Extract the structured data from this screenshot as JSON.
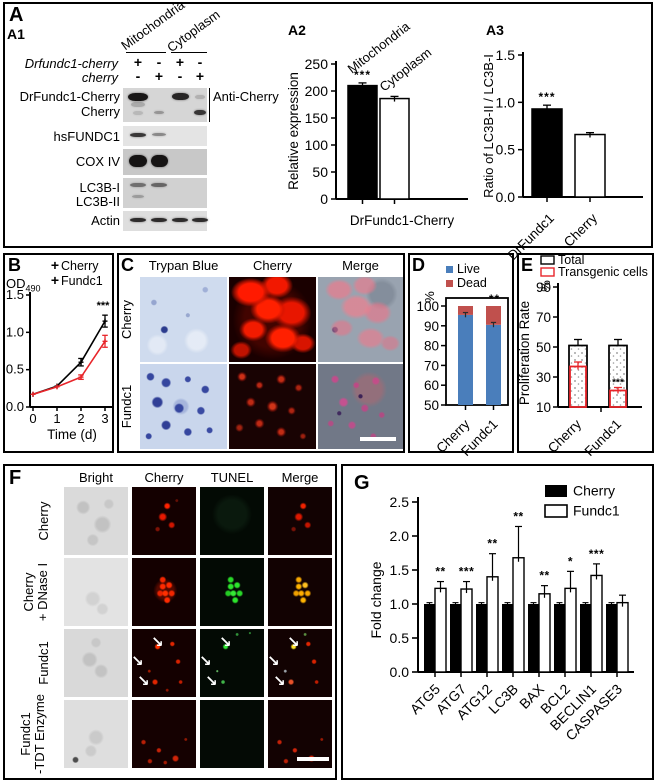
{
  "labels": {
    "A": "A",
    "A1": "A1",
    "A2": "A2",
    "A3": "A3",
    "B": "B",
    "C": "C",
    "D": "D",
    "E": "E",
    "F": "F",
    "G": "G"
  },
  "colors": {
    "red": "#e8252a",
    "live_blue": "#4a7ebb",
    "dead_red": "#c0504d",
    "black": "#000000",
    "white": "#ffffff"
  },
  "panels": {
    "a1": {
      "groups": [
        {
          "label": "Mitochondria"
        },
        {
          "label": "Cytoplasm"
        }
      ],
      "gene_rows": [
        {
          "label": "Drfundc1-cherry",
          "signs": [
            "+",
            "-",
            "+",
            "-"
          ]
        },
        {
          "label": "cherry",
          "signs": [
            "-",
            "+",
            "-",
            "+"
          ]
        }
      ],
      "antibody_label": "Anti-Cherry",
      "blots": [
        {
          "labels": [
            "DrFundc1-Cherry",
            "Cherry"
          ],
          "bands": [
            [
              0,
              5,
              1.15,
              0.95,
              8
            ],
            [
              2,
              5,
              1.0,
              0.88,
              7
            ],
            [
              3,
              7,
              0.55,
              0.18,
              4
            ],
            [
              0,
              14,
              0.8,
              0.22,
              5
            ],
            [
              1,
              23,
              0.6,
              0.32,
              3
            ],
            [
              3,
              22,
              0.75,
              0.8,
              5
            ],
            [
              0,
              23,
              0.6,
              0.15,
              4
            ]
          ]
        },
        {
          "labels": [
            "hsFUNDC1"
          ],
          "bands": [
            [
              0,
              7,
              0.95,
              0.8,
              4
            ],
            [
              1,
              7,
              0.8,
              0.42,
              3
            ]
          ]
        },
        {
          "labels": [
            "COX IV"
          ],
          "bands": [
            [
              0,
              6,
              1.1,
              0.97,
              12
            ],
            [
              1,
              6,
              1.0,
              0.97,
              12
            ]
          ]
        },
        {
          "labels": [
            "LC3B-I",
            "LC3B-II"
          ],
          "bands": [
            [
              0,
              5,
              0.9,
              0.5,
              4
            ],
            [
              1,
              5,
              0.95,
              0.55,
              4
            ],
            [
              0,
              17,
              0.75,
              0.28,
              3
            ]
          ]
        },
        {
          "labels": [
            "Actin"
          ],
          "bands": [
            [
              0,
              7,
              0.95,
              0.85,
              4
            ],
            [
              1,
              7,
              0.95,
              0.85,
              4
            ],
            [
              2,
              7,
              0.95,
              0.85,
              4
            ],
            [
              3,
              7,
              0.95,
              0.85,
              4
            ]
          ]
        }
      ]
    },
    "c": {
      "col_headers": [
        "Trypan Blue",
        "Cherry",
        "Merge"
      ],
      "row_labels": [
        "Cherry",
        "Fundc1"
      ],
      "scale_bar": true
    },
    "f": {
      "col_headers": [
        "Bright",
        "Cherry",
        "TUNEL",
        "Merge"
      ],
      "row_labels": [
        [
          "Cherry"
        ],
        [
          "Cherry",
          "+ DNase I"
        ],
        [
          "Fundc1"
        ],
        [
          "Fundc1",
          "-TDT Enzyme"
        ]
      ],
      "scale_bar": true
    }
  },
  "chart_data": [
    {
      "id": "a2",
      "type": "bar",
      "categories": [
        "Mitochondria",
        "Cytoplasm"
      ],
      "values": [
        210,
        186
      ],
      "errors": [
        5,
        4
      ],
      "bar_colors": [
        "#000000",
        "#ffffff"
      ],
      "sig": [
        "***",
        ""
      ],
      "ylabel": "Relative expression",
      "yticks": [
        0,
        50,
        100,
        150,
        200,
        250
      ],
      "ylim": [
        0,
        250
      ],
      "xlabel": "DrFundc1-Cherry"
    },
    {
      "id": "a3",
      "type": "bar",
      "categories": [
        "DrFundc1",
        "Cherry"
      ],
      "values": [
        0.93,
        0.66
      ],
      "errors": [
        0.04,
        0.02
      ],
      "bar_colors": [
        "#000000",
        "#ffffff"
      ],
      "sig": [
        "***",
        ""
      ],
      "ylabel": "Ratio of LC3B-II / LC3B-I",
      "yticks": [
        0.0,
        0.5,
        1.0,
        1.5
      ],
      "ylim": [
        0,
        1.5
      ]
    },
    {
      "id": "b",
      "type": "line",
      "x": [
        0,
        1,
        2,
        3
      ],
      "series": [
        {
          "name": "Cherry",
          "color": "#000000",
          "values": [
            0.17,
            0.28,
            0.6,
            1.15
          ],
          "errors": [
            0,
            0,
            0.05,
            0.08
          ]
        },
        {
          "name": "Fundc1",
          "color": "#e8252a",
          "values": [
            0.17,
            0.27,
            0.4,
            0.88
          ],
          "errors": [
            0,
            0,
            0.03,
            0.08
          ]
        }
      ],
      "sig": "***",
      "ylabel_text": "OD",
      "ylabel_sub": "490",
      "xlabel": "Time (d)",
      "yticks": [
        0.0,
        0.5,
        1.0,
        1.5
      ],
      "xticks": [
        0,
        1,
        2,
        3
      ],
      "ylim": [
        0,
        1.5
      ]
    },
    {
      "id": "d",
      "type": "stacked_bar",
      "categories": [
        "Cherry",
        "Fundc1"
      ],
      "series": [
        {
          "name": "Live",
          "color": "#4a7ebb",
          "values": [
            95.5,
            90.5
          ]
        },
        {
          "name": "Dead",
          "color": "#c0504d",
          "values": [
            4.5,
            9.5
          ]
        }
      ],
      "errors": [
        1.2,
        1.2
      ],
      "sig": [
        "",
        "**"
      ],
      "ylabel": "%",
      "yticks": [
        50,
        60,
        70,
        80,
        90,
        100
      ],
      "ylim": [
        50,
        100
      ]
    },
    {
      "id": "e",
      "type": "overlay_bar",
      "categories": [
        "Cherry",
        "Fundc1"
      ],
      "series": [
        {
          "name": "Total",
          "outline": "#000000",
          "values": [
            51,
            51
          ],
          "errors": [
            4,
            4
          ]
        },
        {
          "name": "Transgenic cells",
          "outline": "#e8252a",
          "values": [
            37,
            21
          ],
          "errors": [
            3,
            2
          ]
        }
      ],
      "sig": [
        "",
        "***"
      ],
      "ylabel": "Proliferation Rate",
      "y_unit": "%",
      "yticks": [
        10,
        30,
        50,
        70,
        90
      ],
      "ylim": [
        10,
        95
      ]
    },
    {
      "id": "g",
      "type": "grouped_bar",
      "categories": [
        "ATG5",
        "ATG7",
        "ATG12",
        "LC3B",
        "BAX",
        "BCL2",
        "BECLIN1",
        "CASPASE3"
      ],
      "series": [
        {
          "name": "Cherry",
          "color": "#000000",
          "values": [
            1.0,
            1.0,
            1.0,
            1.0,
            1.0,
            1.0,
            1.0,
            1.0
          ],
          "errors": [
            0.02,
            0.02,
            0.02,
            0.02,
            0.02,
            0.02,
            0.02,
            0.02
          ]
        },
        {
          "name": "Fundc1",
          "color": "#ffffff",
          "values": [
            1.23,
            1.22,
            1.4,
            1.68,
            1.15,
            1.23,
            1.42,
            1.02
          ],
          "errors": [
            0.1,
            0.11,
            0.34,
            0.46,
            0.12,
            0.25,
            0.17,
            0.11
          ]
        }
      ],
      "sig": [
        "**",
        "***",
        "**",
        "**",
        "**",
        "*",
        "***",
        ""
      ],
      "ylabel": "Fold change",
      "yticks": [
        0.0,
        0.5,
        1.0,
        1.5,
        2.0,
        2.5
      ],
      "ylim": [
        0,
        2.5
      ]
    }
  ]
}
